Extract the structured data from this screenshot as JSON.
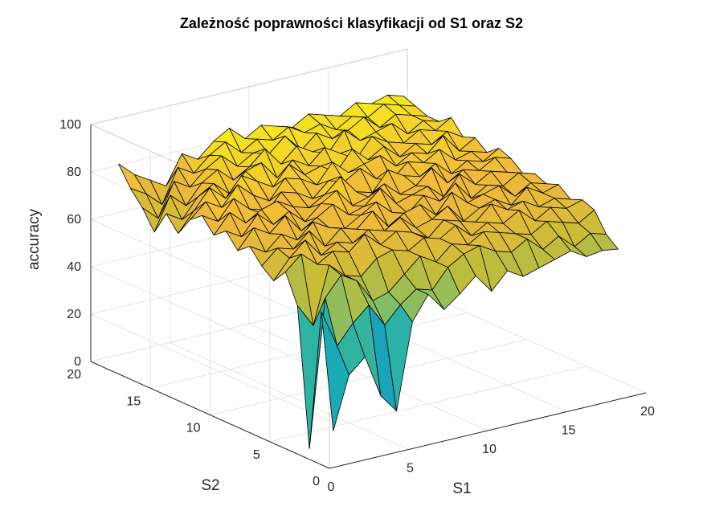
{
  "chart_data": {
    "type": "surface",
    "title": "Zależność poprawności klasyfikacji od S1 oraz S2",
    "xlabel": "S1",
    "ylabel": "S2",
    "zlabel": "accuracy",
    "xlim": [
      0,
      20
    ],
    "ylim": [
      0,
      20
    ],
    "zlim": [
      0,
      100
    ],
    "xticks": [
      "0",
      "5",
      "10",
      "15",
      "20"
    ],
    "yticks": [
      "0",
      "5",
      "10",
      "15",
      "20"
    ],
    "zticks": [
      "0",
      "20",
      "40",
      "60",
      "80",
      "100"
    ],
    "grid": true,
    "colormap": "parula",
    "s1": [
      1,
      2,
      3,
      4,
      5,
      6,
      7,
      8,
      9,
      10,
      11,
      12,
      13,
      14,
      15,
      16,
      17,
      18,
      19
    ],
    "s2": [
      1,
      2,
      3,
      4,
      5,
      6,
      7,
      8,
      9,
      10,
      11,
      12,
      13,
      14,
      15,
      16,
      17,
      18,
      19
    ],
    "z": [
      [
        12,
        34,
        40,
        22,
        14,
        50,
        60,
        52,
        57,
        63,
        55,
        62,
        58,
        60,
        62,
        64,
        60,
        61,
        60
      ],
      [
        60,
        44,
        52,
        58,
        48,
        55,
        60,
        58,
        66,
        70,
        72,
        68,
        66,
        70,
        64,
        68,
        62,
        66,
        64
      ],
      [
        0,
        62,
        70,
        66,
        56,
        58,
        64,
        70,
        66,
        72,
        70,
        74,
        72,
        70,
        68,
        72,
        70,
        68,
        72
      ],
      [
        58,
        48,
        72,
        66,
        64,
        70,
        72,
        70,
        74,
        72,
        76,
        70,
        74,
        72,
        76,
        70,
        74,
        72,
        74
      ],
      [
        70,
        76,
        70,
        74,
        72,
        78,
        72,
        76,
        74,
        70,
        76,
        74,
        72,
        78,
        74,
        76,
        72,
        74,
        72
      ],
      [
        64,
        72,
        78,
        70,
        74,
        72,
        76,
        74,
        78,
        72,
        74,
        78,
        70,
        74,
        76,
        72,
        78,
        74,
        76
      ],
      [
        68,
        74,
        72,
        78,
        70,
        76,
        74,
        80,
        72,
        76,
        78,
        72,
        80,
        74,
        76,
        78,
        72,
        76,
        74
      ],
      [
        74,
        70,
        76,
        72,
        78,
        74,
        72,
        76,
        80,
        74,
        72,
        78,
        74,
        80,
        72,
        76,
        74,
        78,
        76
      ],
      [
        70,
        78,
        74,
        80,
        72,
        76,
        80,
        74,
        76,
        82,
        74,
        76,
        78,
        72,
        80,
        74,
        78,
        76,
        74
      ],
      [
        76,
        72,
        80,
        74,
        78,
        72,
        78,
        82,
        74,
        76,
        80,
        74,
        76,
        82,
        74,
        78,
        76,
        80,
        78
      ],
      [
        72,
        80,
        74,
        78,
        80,
        76,
        74,
        78,
        84,
        76,
        74,
        82,
        78,
        76,
        80,
        74,
        78,
        76,
        80
      ],
      [
        78,
        74,
        82,
        76,
        72,
        80,
        78,
        74,
        80,
        78,
        82,
        76,
        74,
        80,
        78,
        82,
        76,
        78,
        76
      ],
      [
        74,
        80,
        76,
        84,
        78,
        74,
        82,
        80,
        76,
        84,
        78,
        80,
        82,
        76,
        80,
        78,
        84,
        76,
        80
      ],
      [
        66,
        74,
        82,
        76,
        84,
        80,
        76,
        84,
        78,
        80,
        76,
        84,
        78,
        82,
        76,
        80,
        78,
        82,
        78
      ],
      [
        72,
        68,
        76,
        80,
        74,
        82,
        84,
        76,
        82,
        78,
        84,
        80,
        76,
        84,
        80,
        78,
        82,
        80,
        84
      ],
      [
        62,
        76,
        70,
        78,
        82,
        76,
        80,
        86,
        78,
        84,
        80,
        78,
        86,
        80,
        82,
        84,
        78,
        82,
        80
      ],
      [
        70,
        64,
        78,
        74,
        80,
        84,
        78,
        82,
        80,
        86,
        78,
        84,
        80,
        82,
        86,
        80,
        84,
        82,
        80
      ],
      [
        76,
        72,
        66,
        80,
        76,
        82,
        86,
        80,
        84,
        82,
        86,
        82,
        84,
        80,
        84,
        82,
        86,
        84,
        82
      ],
      [
        84,
        78,
        74,
        70,
        82,
        78,
        84,
        88,
        82,
        86,
        84,
        82,
        86,
        84,
        82,
        86,
        84,
        86,
        84
      ]
    ]
  }
}
